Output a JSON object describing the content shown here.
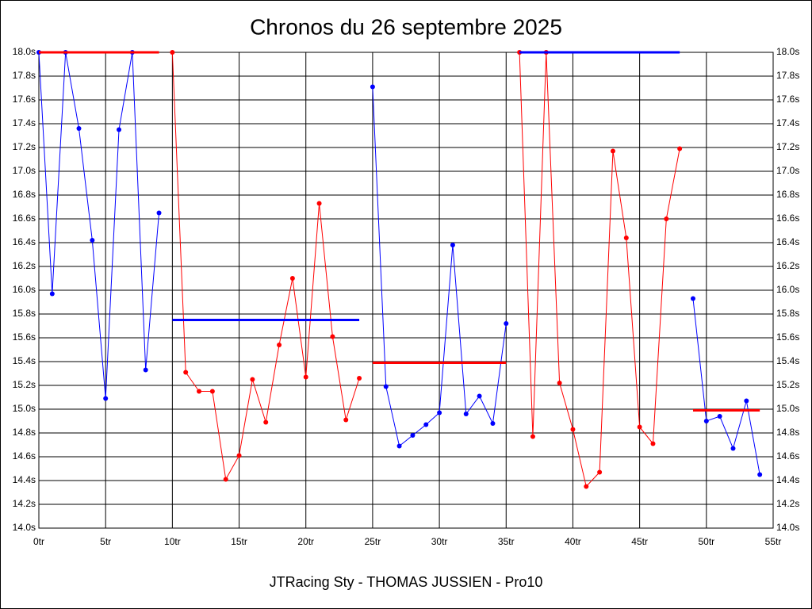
{
  "chart_data": {
    "type": "line",
    "title": "Chronos du 26 septembre 2025",
    "xlabel": "JTRacing Sty - THOMAS JUSSIEN - Pro10",
    "xlim": [
      0,
      55
    ],
    "xticks": [
      {
        "value": 0,
        "label": "0tr"
      },
      {
        "value": 5,
        "label": "5tr"
      },
      {
        "value": 10,
        "label": "10tr"
      },
      {
        "value": 15,
        "label": "15tr"
      },
      {
        "value": 20,
        "label": "20tr"
      },
      {
        "value": 25,
        "label": "25tr"
      },
      {
        "value": 30,
        "label": "30tr"
      },
      {
        "value": 35,
        "label": "35tr"
      },
      {
        "value": 40,
        "label": "40tr"
      },
      {
        "value": 45,
        "label": "45tr"
      },
      {
        "value": 50,
        "label": "50tr"
      },
      {
        "value": 55,
        "label": "55tr"
      }
    ],
    "ylim": [
      14.0,
      18.0
    ],
    "yticks": [
      {
        "value": 14.0,
        "label": "14.0s"
      },
      {
        "value": 14.2,
        "label": "14.2s"
      },
      {
        "value": 14.4,
        "label": "14.4s"
      },
      {
        "value": 14.6,
        "label": "14.6s"
      },
      {
        "value": 14.8,
        "label": "14.8s"
      },
      {
        "value": 15.0,
        "label": "15.0s"
      },
      {
        "value": 15.2,
        "label": "15.2s"
      },
      {
        "value": 15.4,
        "label": "15.4s"
      },
      {
        "value": 15.6,
        "label": "15.6s"
      },
      {
        "value": 15.8,
        "label": "15.8s"
      },
      {
        "value": 16.0,
        "label": "16.0s"
      },
      {
        "value": 16.2,
        "label": "16.2s"
      },
      {
        "value": 16.4,
        "label": "16.4s"
      },
      {
        "value": 16.6,
        "label": "16.6s"
      },
      {
        "value": 16.8,
        "label": "16.8s"
      },
      {
        "value": 17.0,
        "label": "17.0s"
      },
      {
        "value": 17.2,
        "label": "17.2s"
      },
      {
        "value": 17.4,
        "label": "17.4s"
      },
      {
        "value": 17.6,
        "label": "17.6s"
      },
      {
        "value": 17.8,
        "label": "17.8s"
      },
      {
        "value": 18.0,
        "label": "18.0s"
      }
    ],
    "grid": true,
    "series": [
      {
        "color": "#0000ff",
        "x": [
          0,
          1,
          2,
          3,
          4,
          5,
          6,
          7,
          8,
          9
        ],
        "values": [
          18.0,
          15.97,
          18.0,
          17.36,
          16.42,
          15.09,
          17.35,
          18.0,
          15.33,
          16.65
        ]
      },
      {
        "color": "#ff0000",
        "x": [
          10,
          11,
          12,
          13,
          14,
          15,
          16,
          17,
          18,
          19,
          20,
          21,
          22,
          23,
          24
        ],
        "values": [
          18.0,
          15.31,
          15.15,
          15.15,
          14.41,
          14.61,
          15.25,
          14.89,
          15.54,
          16.1,
          15.27,
          16.73,
          15.61,
          14.91,
          15.26
        ]
      },
      {
        "color": "#0000ff",
        "x": [
          25,
          26,
          27,
          28,
          29,
          30,
          31,
          32,
          33,
          34,
          35
        ],
        "values": [
          17.71,
          15.19,
          14.69,
          14.78,
          14.87,
          14.97,
          16.38,
          14.96,
          15.11,
          14.88,
          15.72
        ]
      },
      {
        "color": "#ff0000",
        "x": [
          36,
          37,
          38,
          39,
          40,
          41,
          42,
          43,
          44,
          45,
          46,
          47,
          48
        ],
        "values": [
          18.0,
          14.77,
          18.0,
          15.22,
          14.83,
          14.35,
          14.47,
          17.17,
          16.44,
          14.85,
          14.71,
          16.6,
          17.19
        ]
      },
      {
        "color": "#0000ff",
        "x": [
          49,
          50,
          51,
          52,
          53,
          54
        ],
        "values": [
          15.93,
          14.9,
          14.94,
          14.67,
          15.07,
          14.45
        ]
      }
    ],
    "reference_lines": [
      {
        "color": "#ff0000",
        "xlim": [
          0,
          9
        ],
        "value": 18.0
      },
      {
        "color": "#0000ff",
        "xlim": [
          10,
          24
        ],
        "value": 15.75
      },
      {
        "color": "#ff0000",
        "xlim": [
          25,
          35
        ],
        "value": 15.39
      },
      {
        "color": "#0000ff",
        "xlim": [
          36,
          48
        ],
        "value": 18.0
      },
      {
        "color": "#ff0000",
        "xlim": [
          49,
          54
        ],
        "value": 14.99
      }
    ]
  }
}
